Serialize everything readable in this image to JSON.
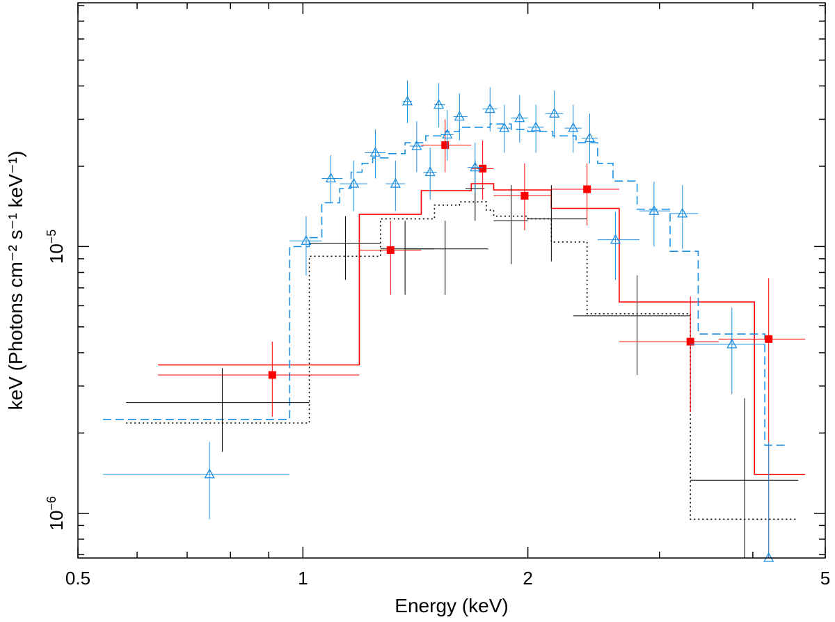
{
  "chart_data": {
    "type": "scatter",
    "xscale": "log",
    "yscale": "log",
    "xlim": [
      0.5,
      5
    ],
    "ylim": [
      6.8e-07,
      8.2e-05
    ],
    "xlabel": "Energy (keV)",
    "ylabel": "keV (Photons cm⁻² s⁻¹ keV⁻¹)",
    "x_ticks": [
      {
        "value": 0.5,
        "label": "0.5"
      },
      {
        "value": 1,
        "label": "1"
      },
      {
        "value": 2,
        "label": "2"
      },
      {
        "value": 5,
        "label": "5"
      }
    ],
    "y_ticks": [
      {
        "value": 1e-06,
        "base": "10",
        "exp": "−6"
      },
      {
        "value": 1e-05,
        "base": "10",
        "exp": "−5"
      }
    ],
    "series": [
      {
        "name": "black",
        "color": "#000000",
        "marker": "none",
        "points": [
          {
            "x": 0.78,
            "y": 2.6e-06,
            "xlo": 0.58,
            "xhi": 1.02,
            "ylo": 1.7e-06,
            "yhi": 3.5e-06
          },
          {
            "x": 1.14,
            "y": 1.03e-05,
            "xlo": 1.02,
            "xhi": 1.27,
            "ylo": 7.5e-06,
            "yhi": 1.3e-05
          },
          {
            "x": 1.37,
            "y": 9.8e-06,
            "xlo": 1.27,
            "xhi": 1.5,
            "ylo": 6.6e-06,
            "yhi": 1.25e-05
          },
          {
            "x": 1.55,
            "y": 9.8e-06,
            "xlo": 1.37,
            "xhi": 1.77,
            "ylo": 6.6e-06,
            "yhi": 1.25e-05
          },
          {
            "x": 1.7,
            "y": 1.65e-05,
            "xlo": 1.65,
            "xhi": 1.75,
            "ylo": 1.25e-05,
            "yhi": 2.1e-05
          },
          {
            "x": 1.9,
            "y": 1.25e-05,
            "xlo": 1.8,
            "xhi": 2.0,
            "ylo": 8.6e-06,
            "yhi": 1.7e-05
          },
          {
            "x": 2.15,
            "y": 1.27e-05,
            "xlo": 2.0,
            "xhi": 2.4,
            "ylo": 8.8e-06,
            "yhi": 1.7e-05
          },
          {
            "x": 2.8,
            "y": 5.5e-06,
            "xlo": 2.3,
            "xhi": 3.3,
            "ylo": 3.3e-06,
            "yhi": 7.8e-06
          },
          {
            "x": 3.9,
            "y": 1.33e-06,
            "xlo": 3.3,
            "xhi": 4.6,
            "ylo": 6.8e-07,
            "yhi": 2.7e-06
          }
        ],
        "model_steps": [
          {
            "x": 0.58,
            "y": 2.18e-06
          },
          {
            "x": 1.02,
            "y": 9.2e-06
          },
          {
            "x": 1.27,
            "y": 1.27e-05
          },
          {
            "x": 1.5,
            "y": 1.43e-05
          },
          {
            "x": 1.62,
            "y": 1.47e-05
          },
          {
            "x": 1.76,
            "y": 1.37e-05
          },
          {
            "x": 1.8,
            "y": 1.3e-05
          },
          {
            "x": 2.0,
            "y": 1.27e-05
          },
          {
            "x": 2.15,
            "y": 1.04e-05
          },
          {
            "x": 2.4,
            "y": 5.6e-06
          },
          {
            "x": 3.3,
            "y": 9.5e-07
          },
          {
            "x": 4.6,
            "y": null
          }
        ]
      },
      {
        "name": "red",
        "color": "#ff0000",
        "marker": "filled-square",
        "points": [
          {
            "x": 0.91,
            "y": 3.3e-06,
            "xlo": 0.64,
            "xhi": 1.19,
            "ylo": 2.3e-06,
            "yhi": 4.4e-06
          },
          {
            "x": 1.31,
            "y": 9.7e-06,
            "xlo": 1.19,
            "xhi": 1.44,
            "ylo": 6.6e-06,
            "yhi": 1.25e-05
          },
          {
            "x": 1.55,
            "y": 2.4e-05,
            "xlo": 1.44,
            "xhi": 1.68,
            "ylo": 1.9e-05,
            "yhi": 3e-05
          },
          {
            "x": 1.74,
            "y": 1.96e-05,
            "xlo": 1.68,
            "xhi": 1.8,
            "ylo": 1.5e-05,
            "yhi": 2.5e-05
          },
          {
            "x": 1.98,
            "y": 1.55e-05,
            "xlo": 1.8,
            "xhi": 2.15,
            "ylo": 1.15e-05,
            "yhi": 2.05e-05
          },
          {
            "x": 2.4,
            "y": 1.64e-05,
            "xlo": 2.15,
            "xhi": 2.65,
            "ylo": 1.2e-05,
            "yhi": 2.05e-05
          },
          {
            "x": 3.3,
            "y": 4.4e-06,
            "xlo": 2.65,
            "xhi": 3.6,
            "ylo": 2.4e-06,
            "yhi": 6.5e-06
          },
          {
            "x": 4.2,
            "y": 4.5e-06,
            "xlo": 3.6,
            "xhi": 4.7,
            "ylo": 6.8e-07,
            "yhi": 7.6e-06
          }
        ],
        "model_steps": [
          {
            "x": 0.64,
            "y": 3.6e-06
          },
          {
            "x": 1.19,
            "y": 1.32e-05
          },
          {
            "x": 1.44,
            "y": 1.62e-05
          },
          {
            "x": 1.68,
            "y": 1.72e-05
          },
          {
            "x": 1.8,
            "y": 1.63e-05
          },
          {
            "x": 2.15,
            "y": 1.39e-05
          },
          {
            "x": 2.65,
            "y": 6.2e-06
          },
          {
            "x": 4.02,
            "y": 1.4e-06
          },
          {
            "x": 4.7,
            "y": null
          }
        ]
      },
      {
        "name": "blue",
        "color": "#1b8fe3",
        "marker": "open-triangle",
        "points": [
          {
            "x": 0.75,
            "y": 1.4e-06,
            "xlo": 0.54,
            "xhi": 0.96,
            "ylo": 9.5e-07,
            "yhi": 1.85e-06
          },
          {
            "x": 1.01,
            "y": 1.05e-05,
            "xlo": 0.96,
            "xhi": 1.06,
            "ylo": 7.8e-06,
            "yhi": 1.3e-05
          },
          {
            "x": 1.09,
            "y": 1.8e-05,
            "xlo": 1.06,
            "xhi": 1.13,
            "ylo": 1.45e-05,
            "yhi": 2.2e-05
          },
          {
            "x": 1.17,
            "y": 1.72e-05,
            "xlo": 1.12,
            "xhi": 1.22,
            "ylo": 1.36e-05,
            "yhi": 2.1e-05
          },
          {
            "x": 1.25,
            "y": 2.25e-05,
            "xlo": 1.21,
            "xhi": 1.29,
            "ylo": 1.8e-05,
            "yhi": 2.75e-05
          },
          {
            "x": 1.33,
            "y": 1.72e-05,
            "xlo": 1.29,
            "xhi": 1.37,
            "ylo": 1.36e-05,
            "yhi": 2.1e-05
          },
          {
            "x": 1.38,
            "y": 3.5e-05,
            "xlo": 1.36,
            "xhi": 1.4,
            "ylo": 2.9e-05,
            "yhi": 4.2e-05
          },
          {
            "x": 1.42,
            "y": 2.38e-05,
            "xlo": 1.39,
            "xhi": 1.45,
            "ylo": 1.9e-05,
            "yhi": 2.95e-05
          },
          {
            "x": 1.48,
            "y": 1.9e-05,
            "xlo": 1.45,
            "xhi": 1.51,
            "ylo": 1.5e-05,
            "yhi": 2.35e-05
          },
          {
            "x": 1.52,
            "y": 3.4e-05,
            "xlo": 1.5,
            "xhi": 1.55,
            "ylo": 2.8e-05,
            "yhi": 4.1e-05
          },
          {
            "x": 1.56,
            "y": 2.63e-05,
            "xlo": 1.53,
            "xhi": 1.59,
            "ylo": 2.1e-05,
            "yhi": 3.25e-05
          },
          {
            "x": 1.62,
            "y": 3.07e-05,
            "xlo": 1.59,
            "xhi": 1.66,
            "ylo": 2.5e-05,
            "yhi": 3.75e-05
          },
          {
            "x": 1.7,
            "y": 1.98e-05,
            "xlo": 1.66,
            "xhi": 1.74,
            "ylo": 1.6e-05,
            "yhi": 2.45e-05
          },
          {
            "x": 1.78,
            "y": 3.28e-05,
            "xlo": 1.74,
            "xhi": 1.82,
            "ylo": 2.7e-05,
            "yhi": 3.95e-05
          },
          {
            "x": 1.86,
            "y": 2.78e-05,
            "xlo": 1.82,
            "xhi": 1.9,
            "ylo": 2.25e-05,
            "yhi": 3.4e-05
          },
          {
            "x": 1.95,
            "y": 3.03e-05,
            "xlo": 1.9,
            "xhi": 2.0,
            "ylo": 2.45e-05,
            "yhi": 3.7e-05
          },
          {
            "x": 2.05,
            "y": 2.8e-05,
            "xlo": 2.0,
            "xhi": 2.1,
            "ylo": 2.25e-05,
            "yhi": 3.4e-05
          },
          {
            "x": 2.17,
            "y": 3.15e-05,
            "xlo": 2.11,
            "xhi": 2.23,
            "ylo": 2.55e-05,
            "yhi": 3.85e-05
          },
          {
            "x": 2.3,
            "y": 2.78e-05,
            "xlo": 2.24,
            "xhi": 2.36,
            "ylo": 2.25e-05,
            "yhi": 3.4e-05
          },
          {
            "x": 2.42,
            "y": 2.55e-05,
            "xlo": 2.36,
            "xhi": 2.48,
            "ylo": 2.05e-05,
            "yhi": 3.15e-05
          },
          {
            "x": 2.62,
            "y": 1.06e-05,
            "xlo": 2.48,
            "xhi": 2.82,
            "ylo": 7.5e-06,
            "yhi": 1.35e-05
          },
          {
            "x": 2.95,
            "y": 1.36e-05,
            "xlo": 2.82,
            "xhi": 3.1,
            "ylo": 1e-05,
            "yhi": 1.75e-05
          },
          {
            "x": 3.22,
            "y": 1.33e-05,
            "xlo": 3.1,
            "xhi": 3.38,
            "ylo": 9.8e-06,
            "yhi": 1.7e-05
          },
          {
            "x": 3.75,
            "y": 4.3e-06,
            "xlo": 3.3,
            "xhi": 4.15,
            "ylo": 2.8e-06,
            "yhi": 5.9e-06
          },
          {
            "x": 4.2,
            "y": 6.4e-07,
            "xlo": 4.2,
            "xhi": 4.2,
            "ylo": 6.4e-07,
            "yhi": 1.85e-06
          }
        ],
        "model_steps": [
          {
            "x": 0.54,
            "y": 2.25e-06
          },
          {
            "x": 0.96,
            "y": 1e-05
          },
          {
            "x": 1.02,
            "y": 1.08e-05
          },
          {
            "x": 1.06,
            "y": 1.46e-05
          },
          {
            "x": 1.12,
            "y": 1.65e-05
          },
          {
            "x": 1.16,
            "y": 1.9e-05
          },
          {
            "x": 1.2,
            "y": 2.05e-05
          },
          {
            "x": 1.24,
            "y": 2.15e-05
          },
          {
            "x": 1.3,
            "y": 2.23e-05
          },
          {
            "x": 1.37,
            "y": 2.45e-05
          },
          {
            "x": 1.46,
            "y": 2.6e-05
          },
          {
            "x": 1.55,
            "y": 2.7e-05
          },
          {
            "x": 1.62,
            "y": 2.8e-05
          },
          {
            "x": 1.78,
            "y": 2.88e-05
          },
          {
            "x": 1.9,
            "y": 2.75e-05
          },
          {
            "x": 2.0,
            "y": 2.7e-05
          },
          {
            "x": 2.16,
            "y": 2.6e-05
          },
          {
            "x": 2.32,
            "y": 2.45e-05
          },
          {
            "x": 2.48,
            "y": 2.05e-05
          },
          {
            "x": 2.6,
            "y": 1.76e-05
          },
          {
            "x": 2.8,
            "y": 1.38e-05
          },
          {
            "x": 3.1,
            "y": 9.6e-06
          },
          {
            "x": 3.38,
            "y": 4.7e-06
          },
          {
            "x": 4.15,
            "y": 1.8e-06
          },
          {
            "x": 4.42,
            "y": null
          }
        ]
      }
    ]
  }
}
